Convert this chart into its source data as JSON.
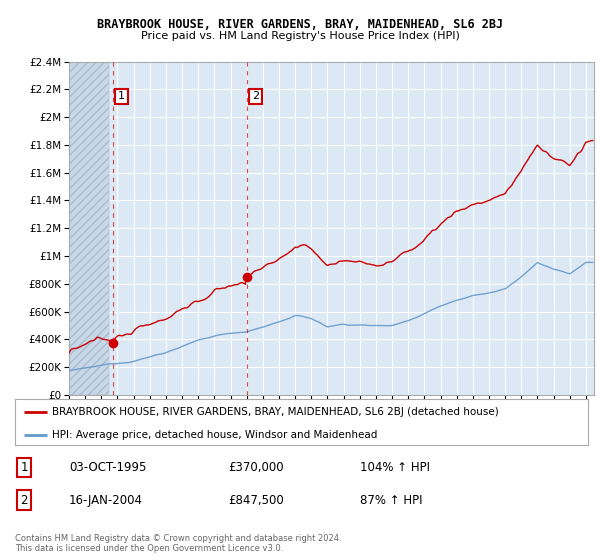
{
  "title": "BRAYBROOK HOUSE, RIVER GARDENS, BRAY, MAIDENHEAD, SL6 2BJ",
  "subtitle": "Price paid vs. HM Land Registry's House Price Index (HPI)",
  "legend_line1": "BRAYBROOK HOUSE, RIVER GARDENS, BRAY, MAIDENHEAD, SL6 2BJ (detached house)",
  "legend_line2": "HPI: Average price, detached house, Windsor and Maidenhead",
  "sale1_date": "03-OCT-1995",
  "sale1_price": 370000,
  "sale1_pct": "104% ↑ HPI",
  "sale2_date": "16-JAN-2004",
  "sale2_price": 847500,
  "sale2_pct": "87% ↑ HPI",
  "footer": "Contains HM Land Registry data © Crown copyright and database right 2024.\nThis data is licensed under the Open Government Licence v3.0.",
  "red_color": "#cc0000",
  "blue_color": "#6699cc",
  "bg_color": "#dce9f5",
  "hatch_color": "#c0d0e0",
  "grid_color": "#ffffff",
  "ylim": [
    0,
    2400000
  ],
  "xlim_start": 1993,
  "xlim_end": 2025.5,
  "sale1_year": 1995.75,
  "sale2_year": 2004.04
}
